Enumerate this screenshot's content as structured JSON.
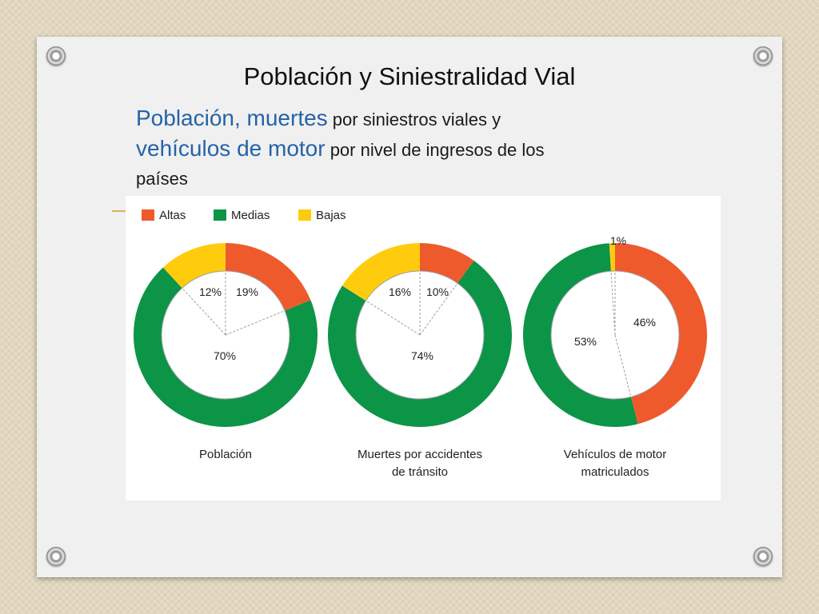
{
  "slide": {
    "title": "Población y Siniestralidad Vial",
    "subtitle": {
      "part1_hl": "Población, muertes",
      "part1": " por siniestros viales y",
      "part2_hl": "vehículos de motor",
      "part2": " por nivel de ingresos de los",
      "part3": "países"
    }
  },
  "chart_data": [
    {
      "type": "pie",
      "title": "Población",
      "categories": [
        "Altas",
        "Medias",
        "Bajas"
      ],
      "values": [
        19,
        70,
        12
      ],
      "labels": [
        "19%",
        "70%",
        "12%"
      ]
    },
    {
      "type": "pie",
      "title": "Muertes por accidentes de tránsito",
      "title_lines": [
        "Muertes por accidentes",
        "de tránsito"
      ],
      "categories": [
        "Altas",
        "Medias",
        "Bajas"
      ],
      "values": [
        10,
        74,
        16
      ],
      "labels": [
        "10%",
        "74%",
        "16%"
      ]
    },
    {
      "type": "pie",
      "title": "Vehículos de motor matriculados",
      "title_lines": [
        "Vehículos de motor",
        "matriculados"
      ],
      "categories": [
        "Altas",
        "Medias",
        "Bajas"
      ],
      "values": [
        46,
        53,
        1
      ],
      "labels": [
        "46%",
        "53%",
        "1%"
      ]
    }
  ],
  "legend": {
    "items": [
      {
        "label": "Altas",
        "color": "#ef5a2c"
      },
      {
        "label": "Medias",
        "color": "#0c9447"
      },
      {
        "label": "Bajas",
        "color": "#ffcc0d"
      }
    ]
  }
}
